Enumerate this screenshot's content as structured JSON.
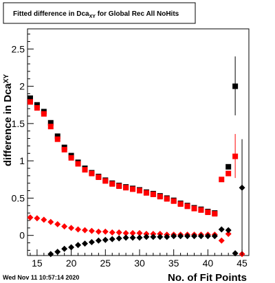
{
  "title": {
    "main": "Fitted difference in Dca",
    "sub": "XY",
    "rest": " for Global Rec All NoHits"
  },
  "timestamp": "Wed Nov 11 10:57:14 2020",
  "chart_data": {
    "type": "scatter",
    "xlabel": "No. of Fit Points",
    "ylabel": "difference in Dca",
    "ylabel_sub": "XY",
    "xlim": [
      13.6,
      46
    ],
    "ylim": [
      -0.27,
      2.77
    ],
    "x_ticks": [
      15,
      20,
      25,
      30,
      35,
      40,
      45
    ],
    "y_ticks": [
      0,
      0.5,
      1,
      1.5,
      2,
      2.5
    ],
    "y_tick_labels": [
      "0",
      "0.5",
      "1",
      "1.5",
      "2",
      "2.5"
    ],
    "grid": false,
    "series": [
      {
        "marker": "square",
        "color": "#000000",
        "points": [
          [
            14,
            1.84
          ],
          [
            15,
            1.75
          ],
          [
            16,
            1.66
          ],
          [
            17,
            1.51
          ],
          [
            18,
            1.33
          ],
          [
            19,
            1.18
          ],
          [
            20,
            1.07
          ],
          [
            21,
            0.98
          ],
          [
            22,
            0.9
          ],
          [
            23,
            0.84
          ],
          [
            24,
            0.79
          ],
          [
            25,
            0.74
          ],
          [
            26,
            0.7
          ],
          [
            27,
            0.67
          ],
          [
            28,
            0.65
          ],
          [
            29,
            0.63
          ],
          [
            30,
            0.61
          ],
          [
            31,
            0.58
          ],
          [
            32,
            0.56
          ],
          [
            33,
            0.53
          ],
          [
            34,
            0.5
          ],
          [
            35,
            0.47
          ],
          [
            36,
            0.43
          ],
          [
            37,
            0.4
          ],
          [
            38,
            0.37
          ],
          [
            39,
            0.35
          ],
          [
            40,
            0.32
          ],
          [
            41,
            0.3
          ],
          [
            43,
            0.92
          ],
          [
            44,
            2.0
          ]
        ],
        "errors": {
          "44": [
            1.61,
            2.4
          ]
        }
      },
      {
        "marker": "square",
        "color": "#ff0000",
        "points": [
          [
            14,
            1.79
          ],
          [
            15,
            1.71
          ],
          [
            16,
            1.63
          ],
          [
            17,
            1.46
          ],
          [
            18,
            1.29
          ],
          [
            19,
            1.15
          ],
          [
            20,
            1.04
          ],
          [
            21,
            0.96
          ],
          [
            22,
            0.88
          ],
          [
            23,
            0.83
          ],
          [
            24,
            0.78
          ],
          [
            25,
            0.73
          ],
          [
            26,
            0.69
          ],
          [
            27,
            0.66
          ],
          [
            28,
            0.64
          ],
          [
            29,
            0.62
          ],
          [
            30,
            0.6
          ],
          [
            31,
            0.57
          ],
          [
            32,
            0.55
          ],
          [
            33,
            0.52
          ],
          [
            34,
            0.49
          ],
          [
            35,
            0.46
          ],
          [
            36,
            0.42
          ],
          [
            37,
            0.39
          ],
          [
            38,
            0.36
          ],
          [
            39,
            0.34
          ],
          [
            40,
            0.31
          ],
          [
            41,
            0.29
          ],
          [
            42,
            0.75
          ],
          [
            43,
            0.83
          ],
          [
            44,
            1.06
          ]
        ],
        "errors": {
          "44": [
            0.77,
            1.36
          ]
        }
      },
      {
        "marker": "diamond",
        "color": "#ff0000",
        "points": [
          [
            14,
            0.24
          ],
          [
            15,
            0.23
          ],
          [
            16,
            0.21
          ],
          [
            17,
            0.18
          ],
          [
            18,
            0.15
          ],
          [
            19,
            0.12
          ],
          [
            20,
            0.1
          ],
          [
            21,
            0.08
          ],
          [
            22,
            0.07
          ],
          [
            23,
            0.06
          ],
          [
            24,
            0.05
          ],
          [
            25,
            0.05
          ],
          [
            26,
            0.04
          ],
          [
            27,
            0.04
          ],
          [
            28,
            0.03
          ],
          [
            29,
            0.03
          ],
          [
            30,
            0.03
          ],
          [
            31,
            0.02
          ],
          [
            32,
            0.02
          ],
          [
            33,
            0.02
          ],
          [
            34,
            0.01
          ],
          [
            35,
            0.01
          ],
          [
            36,
            0.01
          ],
          [
            37,
            0.01
          ],
          [
            38,
            0.01
          ],
          [
            39,
            0.01
          ],
          [
            40,
            0.01
          ],
          [
            41,
            0.01
          ],
          [
            42,
            -0.07
          ],
          [
            43,
            0.02
          ],
          [
            45,
            -0.25
          ]
        ],
        "errors": {}
      },
      {
        "marker": "diamond",
        "color": "#000000",
        "points": [
          [
            17,
            -0.25
          ],
          [
            18,
            -0.22
          ],
          [
            19,
            -0.18
          ],
          [
            20,
            -0.16
          ],
          [
            21,
            -0.13
          ],
          [
            22,
            -0.11
          ],
          [
            23,
            -0.09
          ],
          [
            24,
            -0.07
          ],
          [
            25,
            -0.06
          ],
          [
            26,
            -0.05
          ],
          [
            27,
            -0.04
          ],
          [
            28,
            -0.03
          ],
          [
            29,
            -0.03
          ],
          [
            30,
            -0.03
          ],
          [
            31,
            -0.02
          ],
          [
            32,
            -0.02
          ],
          [
            33,
            -0.02
          ],
          [
            34,
            -0.02
          ],
          [
            35,
            -0.01
          ],
          [
            36,
            -0.01
          ],
          [
            37,
            -0.01
          ],
          [
            38,
            -0.01
          ],
          [
            39,
            -0.01
          ],
          [
            40,
            -0.01
          ],
          [
            41,
            -0.01
          ],
          [
            42,
            0.08
          ],
          [
            43,
            0.07
          ],
          [
            44,
            -0.24
          ],
          [
            45,
            0.64
          ]
        ],
        "errors": {
          "45": [
            -0.27,
            1.29
          ]
        }
      }
    ]
  }
}
